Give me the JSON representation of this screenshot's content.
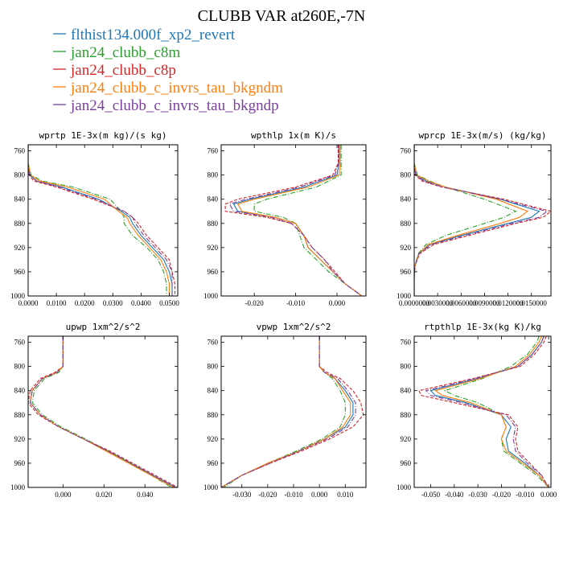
{
  "title": "CLUBB VAR at260E,-7N",
  "colors": {
    "blue": "#1f77b4",
    "green": "#2ca02c",
    "red": "#d62728",
    "orange": "#ff7f0e",
    "purple": "#7b3f9e"
  },
  "legend": [
    {
      "name": "flthist134.000f_xp2_revert",
      "color": "#1f77b4",
      "dash": "solid"
    },
    {
      "name": "jan24_clubb_c8m",
      "color": "#2ca02c",
      "dash": "dashdot"
    },
    {
      "name": "jan24_clubb_c8p",
      "color": "#d62728",
      "dash": "dash"
    },
    {
      "name": "jan24_clubb_c_invrs_tau_bkgndm",
      "color": "#ff7f0e",
      "dash": "solid"
    },
    {
      "name": "jan24_clubb_c_invrs_tau_bkgndp",
      "color": "#7b3f9e",
      "dash": "dashdot"
    }
  ],
  "chart_data": [
    {
      "type": "line",
      "title": "wprtp  1E-3x(m kg)/(s kg)",
      "xlim": [
        0,
        0.053
      ],
      "ylim": [
        1000,
        750
      ],
      "xticks": [
        "0.0000",
        "0.0100",
        "0.0200",
        "0.0300",
        "0.0400",
        "0.0500"
      ],
      "xtick_values": [
        0,
        0.01,
        0.02,
        0.03,
        0.04,
        0.05
      ],
      "yticks": [
        760,
        800,
        840,
        880,
        920,
        960,
        1000
      ],
      "y": [
        750,
        780,
        800,
        810,
        820,
        840,
        860,
        870,
        880,
        900,
        920,
        940,
        960,
        980,
        1000
      ],
      "series": [
        {
          "name": "flthist134.000f_xp2_revert",
          "values": [
            0,
            0,
            0.0005,
            0.003,
            0.012,
            0.025,
            0.033,
            0.036,
            0.037,
            0.04,
            0.044,
            0.048,
            0.05,
            0.051,
            0.051
          ]
        },
        {
          "name": "jan24_clubb_c8m",
          "values": [
            0,
            0,
            0.001,
            0.005,
            0.016,
            0.029,
            0.033,
            0.034,
            0.034,
            0.037,
            0.042,
            0.046,
            0.048,
            0.049,
            0.049
          ]
        },
        {
          "name": "jan24_clubb_c8p",
          "values": [
            0,
            0,
            0.0003,
            0.002,
            0.01,
            0.023,
            0.034,
            0.037,
            0.039,
            0.042,
            0.046,
            0.05,
            0.051,
            0.052,
            0.052
          ]
        },
        {
          "name": "jan24_clubb_c_invrs_tau_bkgndm",
          "values": [
            0,
            0,
            0.0008,
            0.004,
            0.014,
            0.027,
            0.032,
            0.035,
            0.036,
            0.039,
            0.043,
            0.047,
            0.049,
            0.05,
            0.05
          ]
        },
        {
          "name": "jan24_clubb_c_invrs_tau_bkgndp",
          "values": [
            0,
            0,
            0.0004,
            0.003,
            0.011,
            0.024,
            0.034,
            0.037,
            0.038,
            0.041,
            0.045,
            0.049,
            0.051,
            0.051,
            0.051
          ]
        }
      ]
    },
    {
      "type": "line",
      "title": "wpthlp  1x(m K)/s",
      "xlim": [
        -0.028,
        0.007
      ],
      "ylim": [
        1000,
        750
      ],
      "xticks": [
        "-0.020",
        "-0.010",
        "0.000"
      ],
      "xtick_values": [
        -0.02,
        -0.01,
        0
      ],
      "yticks": [
        760,
        800,
        840,
        880,
        920,
        960,
        1000
      ],
      "y": [
        750,
        780,
        800,
        820,
        840,
        848,
        860,
        870,
        880,
        900,
        920,
        940,
        960,
        980,
        1000
      ],
      "series": [
        {
          "name": "flthist134.000f_xp2_revert",
          "values": [
            0.0005,
            0.0005,
            0,
            -0.008,
            -0.021,
            -0.025,
            -0.024,
            -0.015,
            -0.01,
            -0.008,
            -0.007,
            -0.004,
            -0.001,
            0.002,
            0.006
          ]
        },
        {
          "name": "jan24_clubb_c8m",
          "values": [
            0.001,
            0.001,
            0.001,
            -0.005,
            -0.017,
            -0.02,
            -0.02,
            -0.013,
            -0.01,
            -0.009,
            -0.008,
            -0.005,
            -0.002,
            0.002,
            0.006
          ]
        },
        {
          "name": "jan24_clubb_c8p",
          "values": [
            0.0003,
            0.0003,
            -0.001,
            -0.01,
            -0.024,
            -0.027,
            -0.027,
            -0.017,
            -0.011,
            -0.008,
            -0.006,
            -0.003,
            -0.0005,
            0.002,
            0.006
          ]
        },
        {
          "name": "jan24_clubb_c_invrs_tau_bkgndm",
          "values": [
            0.0008,
            0.0008,
            0.0005,
            -0.007,
            -0.02,
            -0.024,
            -0.023,
            -0.015,
            -0.01,
            -0.008,
            -0.007,
            -0.004,
            -0.001,
            0.002,
            0.006
          ]
        },
        {
          "name": "jan24_clubb_c_invrs_tau_bkgndp",
          "values": [
            0.0004,
            0.0004,
            -0.0005,
            -0.009,
            -0.022,
            -0.026,
            -0.025,
            -0.016,
            -0.011,
            -0.008,
            -0.006,
            -0.003,
            -0.001,
            0.002,
            0.006
          ]
        }
      ]
    },
    {
      "type": "line",
      "title": "wprcp  1E-3x(m/s) (kg/kg)",
      "xlim": [
        0,
        0.0175
      ],
      "ylim": [
        1000,
        750
      ],
      "xticks": [
        "0.0000000",
        "0.0030000",
        "0.0060000",
        "0.0090000",
        "0.0120000",
        "0.0150000"
      ],
      "xtick_values": [
        0,
        0.003,
        0.006,
        0.009,
        0.012,
        0.015
      ],
      "yticks": [
        760,
        800,
        840,
        880,
        920,
        960,
        1000
      ],
      "y": [
        750,
        780,
        800,
        810,
        820,
        840,
        860,
        870,
        880,
        900,
        915,
        930,
        950,
        970,
        1000
      ],
      "series": [
        {
          "name": "flthist134.000f_xp2_revert",
          "values": [
            0,
            0,
            0.0002,
            0.0015,
            0.004,
            0.011,
            0.016,
            0.015,
            0.012,
            0.006,
            0.002,
            0.0006,
            0.0001,
            0,
            0
          ]
        },
        {
          "name": "jan24_clubb_c8m",
          "values": [
            0,
            0,
            0.0004,
            0.002,
            0.004,
            0.009,
            0.013,
            0.0115,
            0.009,
            0.004,
            0.0015,
            0.0005,
            0.0001,
            0,
            0
          ]
        },
        {
          "name": "jan24_clubb_c8p",
          "values": [
            0,
            0,
            0.0001,
            0.001,
            0.0035,
            0.0115,
            0.0175,
            0.0165,
            0.013,
            0.007,
            0.0025,
            0.0007,
            0.0001,
            0,
            0
          ]
        },
        {
          "name": "jan24_clubb_c_invrs_tau_bkgndm",
          "values": [
            0,
            0,
            0.0003,
            0.0018,
            0.004,
            0.0105,
            0.0145,
            0.0135,
            0.011,
            0.0055,
            0.0018,
            0.0006,
            0.0001,
            0,
            0
          ]
        },
        {
          "name": "jan24_clubb_c_invrs_tau_bkgndp",
          "values": [
            0,
            0,
            0.0002,
            0.0012,
            0.0037,
            0.011,
            0.017,
            0.016,
            0.0125,
            0.0065,
            0.0022,
            0.0006,
            0.0001,
            0,
            0
          ]
        }
      ]
    },
    {
      "type": "line",
      "title": "upwp  1xm^2/s^2",
      "xlim": [
        -0.017,
        0.056
      ],
      "ylim": [
        1000,
        750
      ],
      "xticks": [
        "0.000",
        "0.020",
        "0.040"
      ],
      "xtick_values": [
        0,
        0.02,
        0.04
      ],
      "yticks": [
        760,
        800,
        840,
        880,
        920,
        960,
        1000
      ],
      "y": [
        750,
        780,
        800,
        810,
        820,
        840,
        860,
        880,
        900,
        920,
        940,
        960,
        980,
        1000
      ],
      "series": [
        {
          "name": "flthist134.000f_xp2_revert",
          "values": [
            0,
            0,
            0,
            -0.003,
            -0.01,
            -0.015,
            -0.016,
            -0.011,
            -0.002,
            0.01,
            0.022,
            0.033,
            0.044,
            0.055
          ]
        },
        {
          "name": "jan24_clubb_c8m",
          "values": [
            0,
            0,
            0,
            -0.002,
            -0.009,
            -0.014,
            -0.015,
            -0.01,
            -0.001,
            0.011,
            0.022,
            0.033,
            0.043,
            0.053
          ]
        },
        {
          "name": "jan24_clubb_c8p",
          "values": [
            0,
            0,
            0,
            -0.004,
            -0.011,
            -0.016,
            -0.017,
            -0.012,
            -0.002,
            0.01,
            0.023,
            0.034,
            0.045,
            0.056
          ]
        },
        {
          "name": "jan24_clubb_c_invrs_tau_bkgndm",
          "values": [
            0,
            0,
            0,
            -0.003,
            -0.01,
            -0.015,
            -0.016,
            -0.011,
            -0.002,
            0.01,
            0.021,
            0.032,
            0.043,
            0.054
          ]
        },
        {
          "name": "jan24_clubb_c_invrs_tau_bkgndp",
          "values": [
            0,
            0,
            0,
            -0.003,
            -0.01,
            -0.015,
            -0.016,
            -0.011,
            -0.002,
            0.01,
            0.022,
            0.033,
            0.044,
            0.055
          ]
        }
      ]
    },
    {
      "type": "line",
      "title": "vpwp  1xm^2/s^2",
      "xlim": [
        -0.038,
        0.018
      ],
      "ylim": [
        1000,
        750
      ],
      "xticks": [
        "-0.030",
        "-0.020",
        "-0.010",
        "0.000",
        "0.010"
      ],
      "xtick_values": [
        -0.03,
        -0.02,
        -0.01,
        0,
        0.01
      ],
      "yticks": [
        760,
        800,
        840,
        880,
        920,
        960,
        1000
      ],
      "y": [
        750,
        780,
        800,
        810,
        820,
        840,
        860,
        880,
        900,
        920,
        940,
        960,
        980,
        1000
      ],
      "series": [
        {
          "name": "flthist134.000f_xp2_revert",
          "values": [
            0,
            0,
            0,
            0.002,
            0.006,
            0.01,
            0.013,
            0.013,
            0.01,
            0.002,
            -0.008,
            -0.02,
            -0.03,
            -0.038
          ]
        },
        {
          "name": "jan24_clubb_c8m",
          "values": [
            0,
            0,
            0,
            0.002,
            0.005,
            0.008,
            0.01,
            0.01,
            0.008,
            0.001,
            -0.009,
            -0.02,
            -0.03,
            -0.037
          ]
        },
        {
          "name": "jan24_clubb_c8p",
          "values": [
            0,
            0,
            0,
            0.003,
            0.008,
            0.013,
            0.016,
            0.017,
            0.013,
            0.004,
            -0.007,
            -0.019,
            -0.03,
            -0.038
          ]
        },
        {
          "name": "jan24_clubb_c_invrs_tau_bkgndm",
          "values": [
            0,
            0,
            0,
            0.002,
            0.006,
            0.009,
            0.012,
            0.012,
            0.009,
            0.002,
            -0.008,
            -0.02,
            -0.03,
            -0.038
          ]
        },
        {
          "name": "jan24_clubb_c_invrs_tau_bkgndp",
          "values": [
            0,
            0,
            0,
            0.002,
            0.007,
            0.011,
            0.014,
            0.014,
            0.011,
            0.003,
            -0.008,
            -0.019,
            -0.03,
            -0.038
          ]
        }
      ]
    },
    {
      "type": "line",
      "title": "rtpthlp  1E-3x(kg K)/kg",
      "xlim": [
        -0.057,
        0.001
      ],
      "ylim": [
        1000,
        750
      ],
      "xticks": [
        "-0.050",
        "-0.040",
        "-0.030",
        "-0.020",
        "-0.010",
        "0.000"
      ],
      "xtick_values": [
        -0.05,
        -0.04,
        -0.03,
        -0.02,
        -0.01,
        0
      ],
      "yticks": [
        760,
        800,
        840,
        880,
        920,
        960,
        1000
      ],
      "y": [
        750,
        760,
        780,
        800,
        820,
        840,
        848,
        860,
        880,
        900,
        920,
        940,
        960,
        980,
        1000
      ],
      "series": [
        {
          "name": "flthist134.000f_xp2_revert",
          "values": [
            -0.002,
            -0.003,
            -0.007,
            -0.013,
            -0.03,
            -0.05,
            -0.048,
            -0.035,
            -0.02,
            -0.016,
            -0.018,
            -0.017,
            -0.01,
            -0.004,
            0
          ]
        },
        {
          "name": "jan24_clubb_c8m",
          "values": [
            -0.004,
            -0.005,
            -0.009,
            -0.016,
            -0.028,
            -0.044,
            -0.04,
            -0.03,
            -0.02,
            -0.018,
            -0.02,
            -0.019,
            -0.012,
            -0.005,
            0
          ]
        },
        {
          "name": "jan24_clubb_c8p",
          "values": [
            -0.001,
            -0.002,
            -0.006,
            -0.012,
            -0.032,
            -0.055,
            -0.054,
            -0.04,
            -0.017,
            -0.013,
            -0.014,
            -0.013,
            -0.008,
            -0.003,
            0
          ]
        },
        {
          "name": "jan24_clubb_c_invrs_tau_bkgndm",
          "values": [
            -0.003,
            -0.004,
            -0.008,
            -0.014,
            -0.029,
            -0.048,
            -0.045,
            -0.033,
            -0.02,
            -0.018,
            -0.02,
            -0.018,
            -0.011,
            -0.004,
            0
          ]
        },
        {
          "name": "jan24_clubb_c_invrs_tau_bkgndp",
          "values": [
            -0.002,
            -0.003,
            -0.007,
            -0.013,
            -0.031,
            -0.052,
            -0.05,
            -0.037,
            -0.018,
            -0.014,
            -0.015,
            -0.014,
            -0.009,
            -0.003,
            0
          ]
        }
      ]
    }
  ]
}
